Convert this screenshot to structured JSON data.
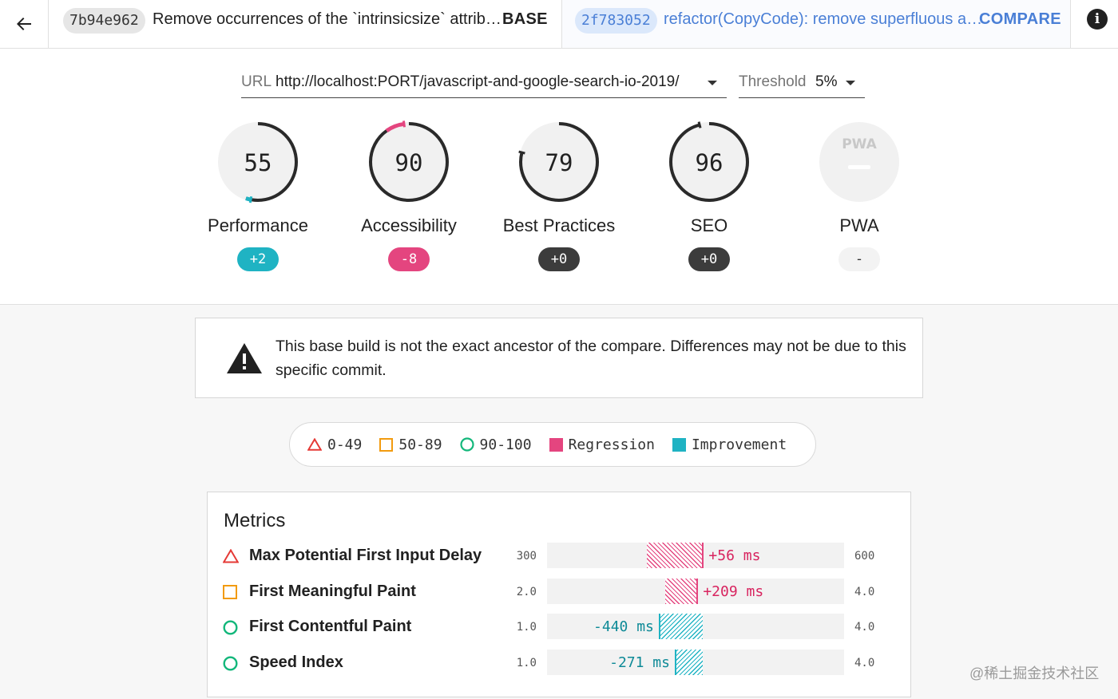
{
  "header": {
    "base": {
      "hash": "7b94e962",
      "message": "Remove occurrences of the `intrinsicsize` attrib…",
      "tag": "BASE"
    },
    "compare": {
      "hash": "2f783052",
      "message": "refactor(CopyCode): remove superfluous a…",
      "tag": "COMPARE"
    },
    "info_glyph": "i"
  },
  "url_selector": {
    "label": "URL",
    "value": "http://localhost:PORT/javascript-and-google-search-io-2019/"
  },
  "threshold_selector": {
    "label": "Threshold",
    "value": "5%"
  },
  "gauges": [
    {
      "score": "55",
      "score_value": 55,
      "label": "Performance",
      "delta": "+2",
      "delta_kind": "improvement"
    },
    {
      "score": "90",
      "score_value": 90,
      "label": "Accessibility",
      "delta": "-8",
      "delta_kind": "regression"
    },
    {
      "score": "79",
      "score_value": 79,
      "label": "Best Practices",
      "delta": "+0",
      "delta_kind": "neutral"
    },
    {
      "score": "96",
      "score_value": 96,
      "label": "SEO",
      "delta": "+0",
      "delta_kind": "neutral"
    },
    {
      "score": "PWA",
      "score_value": null,
      "label": "PWA",
      "delta": "-",
      "delta_kind": "none"
    }
  ],
  "warning": {
    "text": "This base build is not the exact ancestor of the compare. Differences may not be due to this specific commit."
  },
  "legend": {
    "fail": "0-49",
    "average": "50-89",
    "pass": "90-100",
    "regression": "Regression",
    "improvement": "Improvement"
  },
  "metrics": {
    "title": "Metrics",
    "rows": [
      {
        "name": "Max Potential First Input Delay",
        "status": "fail",
        "min": "300",
        "max": "600",
        "delta": "+56 ms",
        "kind": "regression",
        "start_frac": 0.336,
        "end_frac": 0.528
      },
      {
        "name": "First Meaningful Paint",
        "status": "average",
        "min": "2.0",
        "max": "4.0",
        "delta": "+209 ms",
        "kind": "regression",
        "start_frac": 0.398,
        "end_frac": 0.509
      },
      {
        "name": "First Contentful Paint",
        "status": "pass",
        "min": "1.0",
        "max": "4.0",
        "delta": "-440 ms",
        "kind": "improvement",
        "start_frac": 0.376,
        "end_frac": 0.523
      },
      {
        "name": "Speed Index",
        "status": "pass",
        "min": "1.0",
        "max": "4.0",
        "delta": "-271 ms",
        "kind": "improvement",
        "start_frac": 0.43,
        "end_frac": 0.523
      }
    ]
  },
  "colors": {
    "regression": "#e4457f",
    "improvement": "#1fb3c3",
    "fail": "#e53935",
    "average": "#f29b0f",
    "pass": "#13b77b",
    "neutral": "#3c3c3c",
    "link": "#4a7fd6"
  },
  "watermark": "@稀土掘金技术社区"
}
